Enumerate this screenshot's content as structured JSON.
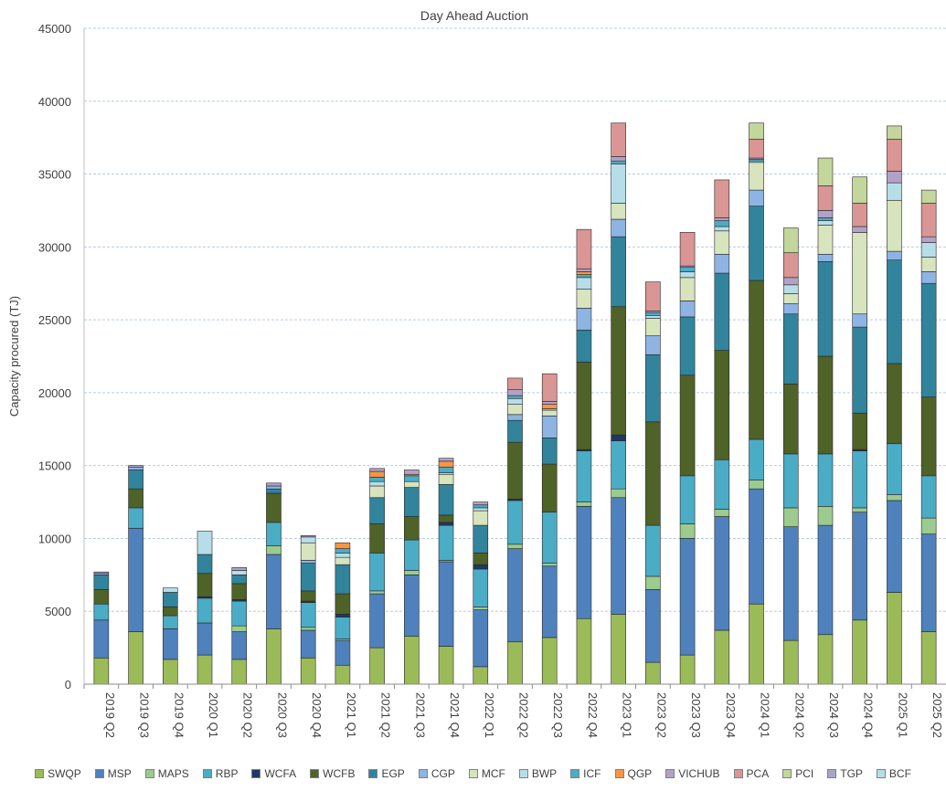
{
  "chart_data": {
    "type": "bar",
    "stacked": true,
    "title": "Day Ahead Auction",
    "ylabel": "Capacity procured (TJ)",
    "xlabel": "",
    "ylim": [
      0,
      45000
    ],
    "yticks": [
      0,
      5000,
      10000,
      15000,
      20000,
      25000,
      30000,
      35000,
      40000,
      45000
    ],
    "grid": "horizontal dashed",
    "legend_position": "bottom",
    "categories": [
      "2019 Q2",
      "2019 Q3",
      "2019 Q4",
      "2020 Q1",
      "2020 Q2",
      "2020 Q3",
      "2020 Q4",
      "2021 Q1",
      "2021 Q2",
      "2021 Q3",
      "2021 Q4",
      "2022 Q1",
      "2022 Q2",
      "2022 Q3",
      "2022 Q4",
      "2023 Q1",
      "2023 Q2",
      "2023 Q3",
      "2023 Q4",
      "2024 Q1",
      "2024 Q2",
      "2024 Q3",
      "2024 Q4",
      "2025 Q1",
      "2025 Q2"
    ],
    "series": [
      {
        "name": "SWQP",
        "color": "#9BBB59",
        "values": [
          1800,
          3600,
          1700,
          2000,
          1700,
          3800,
          1800,
          1300,
          2500,
          3300,
          2600,
          1200,
          2900,
          3200,
          4500,
          4800,
          1500,
          2000,
          3700,
          5500,
          3000,
          3400,
          4400,
          6300,
          3600
        ]
      },
      {
        "name": "MSP",
        "color": "#4F81BD",
        "values": [
          2600,
          7100,
          2100,
          2200,
          1900,
          5100,
          1900,
          1700,
          3700,
          4200,
          5800,
          3900,
          6400,
          4900,
          7700,
          8000,
          5000,
          8000,
          7800,
          7900,
          7800,
          7500,
          7400,
          6300,
          6700
        ]
      },
      {
        "name": "MAPS",
        "color": "#9BCB8E",
        "values": [
          0,
          0,
          0,
          0,
          400,
          600,
          200,
          100,
          200,
          300,
          100,
          200,
          300,
          200,
          300,
          600,
          900,
          1000,
          500,
          600,
          1300,
          1300,
          300,
          400,
          1100
        ]
      },
      {
        "name": "RBP",
        "color": "#4BACC6",
        "values": [
          1100,
          1400,
          900,
          1700,
          1700,
          1600,
          1700,
          1500,
          2600,
          2100,
          2400,
          2600,
          3000,
          3500,
          3500,
          3300,
          3500,
          3300,
          3400,
          2800,
          3700,
          3600,
          3900,
          3500,
          2900
        ]
      },
      {
        "name": "WCFA",
        "color": "#1F3864",
        "values": [
          0,
          0,
          0,
          100,
          100,
          0,
          100,
          200,
          0,
          0,
          200,
          300,
          100,
          0,
          100,
          400,
          0,
          0,
          0,
          0,
          0,
          0,
          100,
          0,
          0
        ]
      },
      {
        "name": "WCFB",
        "color": "#4F6228",
        "values": [
          1000,
          1300,
          600,
          1600,
          1100,
          2000,
          700,
          1400,
          2000,
          1600,
          500,
          800,
          3900,
          3300,
          6000,
          8800,
          7100,
          6900,
          7500,
          10900,
          4800,
          6700,
          2500,
          5500,
          5400
        ]
      },
      {
        "name": "EGP",
        "color": "#31849B",
        "values": [
          1000,
          1300,
          1000,
          1300,
          600,
          300,
          1900,
          2000,
          1800,
          2000,
          2100,
          1900,
          1500,
          1800,
          2200,
          4800,
          4600,
          4000,
          5300,
          5100,
          4800,
          6500,
          5900,
          7100,
          7800
        ]
      },
      {
        "name": "CGP",
        "color": "#8EB4E3",
        "values": [
          100,
          200,
          0,
          0,
          0,
          200,
          200,
          0,
          0,
          0,
          0,
          0,
          400,
          1500,
          1500,
          1200,
          1300,
          1100,
          1300,
          1100,
          700,
          500,
          900,
          600,
          800
        ]
      },
      {
        "name": "MCF",
        "color": "#D7E4BD",
        "values": [
          0,
          0,
          0,
          0,
          0,
          0,
          1200,
          500,
          800,
          400,
          700,
          1000,
          700,
          400,
          1300,
          1100,
          1200,
          1600,
          1600,
          1900,
          700,
          2000,
          5600,
          3500,
          1000
        ]
      },
      {
        "name": "BWP",
        "color": "#B7DEE8",
        "values": [
          0,
          0,
          300,
          1600,
          300,
          0,
          400,
          300,
          300,
          0,
          100,
          200,
          400,
          100,
          800,
          2700,
          200,
          400,
          300,
          100,
          600,
          300,
          0,
          1200,
          1000
        ]
      },
      {
        "name": "ICF",
        "color": "#4BACC6",
        "values": [
          0,
          0,
          0,
          0,
          0,
          0,
          0,
          300,
          300,
          400,
          400,
          200,
          200,
          0,
          200,
          200,
          200,
          300,
          400,
          100,
          0,
          200,
          0,
          0,
          0
        ]
      },
      {
        "name": "QGP",
        "color": "#F79646",
        "values": [
          0,
          0,
          0,
          0,
          0,
          0,
          0,
          400,
          400,
          100,
          400,
          0,
          0,
          300,
          200,
          0,
          0,
          0,
          0,
          0,
          0,
          0,
          0,
          0,
          0
        ]
      },
      {
        "name": "VICHUB",
        "color": "#B3A2C7",
        "values": [
          100,
          100,
          0,
          0,
          200,
          200,
          100,
          0,
          200,
          300,
          200,
          200,
          400,
          200,
          200,
          300,
          100,
          100,
          200,
          100,
          500,
          500,
          400,
          800,
          400
        ]
      },
      {
        "name": "PCA",
        "color": "#D99694",
        "values": [
          0,
          0,
          0,
          0,
          0,
          0,
          0,
          0,
          0,
          0,
          0,
          0,
          800,
          1900,
          2700,
          2300,
          2000,
          2300,
          2600,
          1300,
          1700,
          1700,
          1600,
          2200,
          2300
        ]
      },
      {
        "name": "PCI",
        "color": "#C3D69B",
        "values": [
          0,
          0,
          0,
          0,
          0,
          0,
          0,
          0,
          0,
          0,
          0,
          0,
          0,
          0,
          0,
          0,
          0,
          0,
          0,
          1100,
          1700,
          1900,
          1800,
          900,
          900
        ]
      },
      {
        "name": "TGP",
        "color": "#A6A6C8",
        "values": [
          0,
          0,
          0,
          0,
          0,
          0,
          0,
          0,
          0,
          0,
          0,
          0,
          0,
          0,
          0,
          0,
          0,
          0,
          0,
          0,
          0,
          0,
          0,
          0,
          0
        ]
      },
      {
        "name": "BCF",
        "color": "#B7DEE8",
        "values": [
          0,
          0,
          0,
          0,
          0,
          0,
          0,
          0,
          0,
          0,
          0,
          0,
          0,
          0,
          0,
          0,
          0,
          0,
          0,
          0,
          0,
          0,
          0,
          0,
          0
        ]
      }
    ]
  }
}
